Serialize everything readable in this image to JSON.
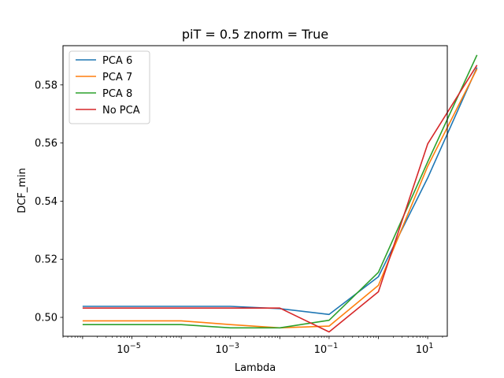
{
  "chart_data": {
    "type": "line",
    "title": "piT = 0.5 znorm = True",
    "xlabel": "Lambda",
    "ylabel": "DCF_min",
    "xscale": "log",
    "xlim": [
      4e-07,
      25
    ],
    "ylim": [
      0.4935,
      0.5935
    ],
    "x": [
      1e-06,
      1e-05,
      0.0001,
      0.001,
      0.01,
      0.1,
      1,
      10,
      100
    ],
    "xticks": [
      {
        "value": 1e-05,
        "base": "10",
        "exp": "−5"
      },
      {
        "value": 0.001,
        "base": "10",
        "exp": "−3"
      },
      {
        "value": 0.1,
        "base": "10",
        "exp": "−1"
      },
      {
        "value": 10,
        "base": "10",
        "exp": "1"
      }
    ],
    "yticks": [
      {
        "value": 0.5,
        "label": "0.50"
      },
      {
        "value": 0.52,
        "label": "0.52"
      },
      {
        "value": 0.54,
        "label": "0.54"
      },
      {
        "value": 0.56,
        "label": "0.56"
      },
      {
        "value": 0.58,
        "label": "0.58"
      }
    ],
    "grid": false,
    "legend_position": "top-left",
    "series": [
      {
        "name": "PCA 6",
        "color": "#1f77b4",
        "values": [
          0.5038,
          0.5038,
          0.5038,
          0.5038,
          0.503,
          0.501,
          0.514,
          0.548,
          0.586
        ]
      },
      {
        "name": "PCA 7",
        "color": "#ff7f0e",
        "values": [
          0.4988,
          0.4988,
          0.4988,
          0.4975,
          0.4964,
          0.497,
          0.511,
          0.552,
          0.5855
        ]
      },
      {
        "name": "PCA 8",
        "color": "#2ca02c",
        "values": [
          0.4975,
          0.4975,
          0.4975,
          0.4964,
          0.4964,
          0.499,
          0.5155,
          0.5535,
          0.5903
        ]
      },
      {
        "name": "No PCA",
        "color": "#d62728",
        "values": [
          0.5032,
          0.5032,
          0.5032,
          0.5032,
          0.5032,
          0.495,
          0.5088,
          0.5597,
          0.5868
        ]
      }
    ]
  }
}
